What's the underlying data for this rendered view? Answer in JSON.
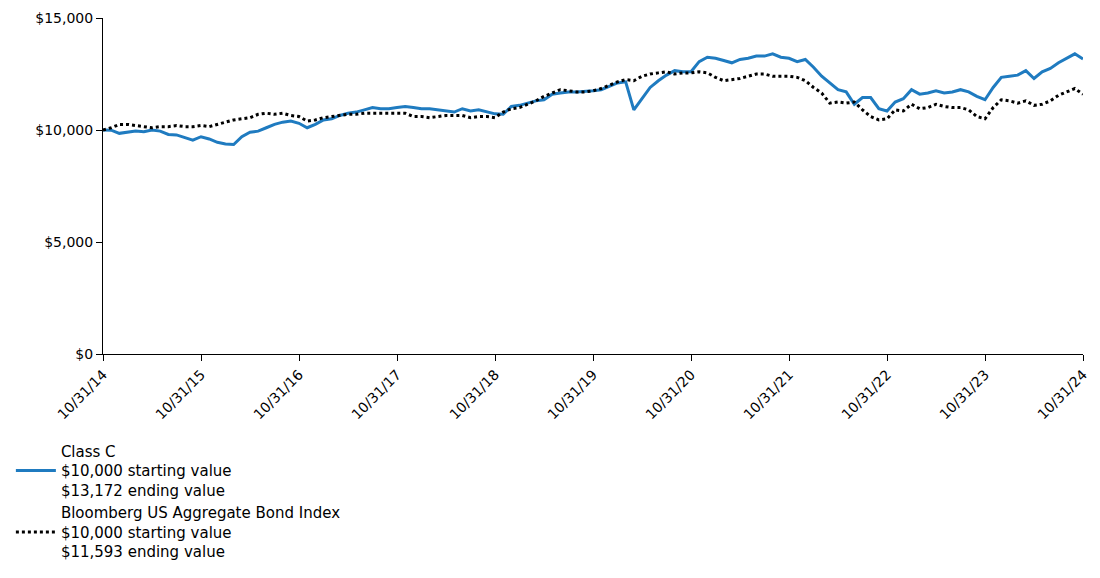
{
  "chart_data": {
    "type": "line",
    "categories": [
      "10/31/14",
      null,
      null,
      null,
      null,
      null,
      null,
      null,
      null,
      null,
      null,
      null,
      "10/31/15",
      null,
      null,
      null,
      null,
      null,
      null,
      null,
      null,
      null,
      null,
      null,
      "10/31/16",
      null,
      null,
      null,
      null,
      null,
      null,
      null,
      null,
      null,
      null,
      null,
      "10/31/17",
      null,
      null,
      null,
      null,
      null,
      null,
      null,
      null,
      null,
      null,
      null,
      "10/31/18",
      null,
      null,
      null,
      null,
      null,
      null,
      null,
      null,
      null,
      null,
      null,
      "10/31/19",
      null,
      null,
      null,
      null,
      null,
      null,
      null,
      null,
      null,
      null,
      null,
      "10/31/20",
      null,
      null,
      null,
      null,
      null,
      null,
      null,
      null,
      null,
      null,
      null,
      "10/31/21",
      null,
      null,
      null,
      null,
      null,
      null,
      null,
      null,
      null,
      null,
      null,
      "10/31/22",
      null,
      null,
      null,
      null,
      null,
      null,
      null,
      null,
      null,
      null,
      null,
      "10/31/23",
      null,
      null,
      null,
      null,
      null,
      null,
      null,
      null,
      null,
      null,
      null,
      "10/31/24"
    ],
    "series": [
      {
        "name": "Class C",
        "color": "#1f7bc0",
        "line_style": "solid",
        "legend_lines": [
          "$10,000 starting value",
          "$13,172 ending value"
        ],
        "values": [
          10000,
          9990,
          9850,
          9900,
          9950,
          9920,
          10000,
          9950,
          9800,
          9780,
          9650,
          9550,
          9700,
          9600,
          9450,
          9380,
          9350,
          9700,
          9900,
          9950,
          10100,
          10250,
          10350,
          10400,
          10300,
          10100,
          10250,
          10450,
          10500,
          10650,
          10750,
          10800,
          10900,
          11000,
          10950,
          10950,
          11000,
          11050,
          11000,
          10950,
          10950,
          10900,
          10850,
          10800,
          10950,
          10850,
          10900,
          10800,
          10720,
          10700,
          11050,
          11100,
          11200,
          11300,
          11350,
          11600,
          11650,
          11700,
          11700,
          11720,
          11750,
          11800,
          11950,
          12100,
          12150,
          10900,
          11400,
          11900,
          12200,
          12450,
          12650,
          12600,
          12600,
          13050,
          13250,
          13200,
          13100,
          13000,
          13150,
          13200,
          13300,
          13300,
          13400,
          13250,
          13200,
          13050,
          13150,
          12800,
          12400,
          12100,
          11800,
          11700,
          11150,
          11450,
          11450,
          10950,
          10850,
          11250,
          11400,
          11800,
          11600,
          11650,
          11750,
          11650,
          11700,
          11800,
          11700,
          11500,
          11350,
          11900,
          12350,
          12400,
          12450,
          12650,
          12300,
          12600,
          12750,
          13000,
          13200,
          13400,
          13172
        ]
      },
      {
        "name": "Bloomberg US Aggregate Bond Index",
        "color": "#000000",
        "line_style": "dotted",
        "legend_lines": [
          "$10,000 starting value",
          "$11,593 ending value"
        ],
        "values": [
          10000,
          10100,
          10250,
          10250,
          10200,
          10150,
          10100,
          10150,
          10150,
          10200,
          10150,
          10150,
          10200,
          10150,
          10250,
          10350,
          10450,
          10500,
          10550,
          10700,
          10750,
          10700,
          10750,
          10650,
          10600,
          10400,
          10450,
          10550,
          10600,
          10650,
          10700,
          10700,
          10750,
          10750,
          10750,
          10750,
          10750,
          10750,
          10600,
          10600,
          10550,
          10600,
          10650,
          10650,
          10650,
          10550,
          10600,
          10600,
          10550,
          10800,
          10950,
          11000,
          11150,
          11300,
          11500,
          11650,
          11800,
          11750,
          11700,
          11700,
          11750,
          11850,
          12000,
          12150,
          12250,
          12200,
          12400,
          12500,
          12550,
          12600,
          12500,
          12550,
          12550,
          12600,
          12550,
          12350,
          12200,
          12250,
          12300,
          12400,
          12500,
          12500,
          12400,
          12400,
          12400,
          12350,
          12200,
          11900,
          11650,
          11200,
          11250,
          11200,
          11250,
          10900,
          10600,
          10450,
          10500,
          10900,
          10850,
          11150,
          10950,
          11000,
          11150,
          11050,
          11000,
          11000,
          10900,
          10600,
          10500,
          11000,
          11350,
          11300,
          11200,
          11300,
          11100,
          11150,
          11300,
          11550,
          11700,
          11850,
          11593
        ]
      }
    ],
    "ylim": [
      0,
      15000
    ],
    "yticks": [
      {
        "value": 0,
        "label": "$0"
      },
      {
        "value": 5000,
        "label": "$5,000"
      },
      {
        "value": 10000,
        "label": "$10,000"
      },
      {
        "value": 15000,
        "label": "$15,000"
      }
    ],
    "grid": false,
    "legend": "bottom"
  }
}
